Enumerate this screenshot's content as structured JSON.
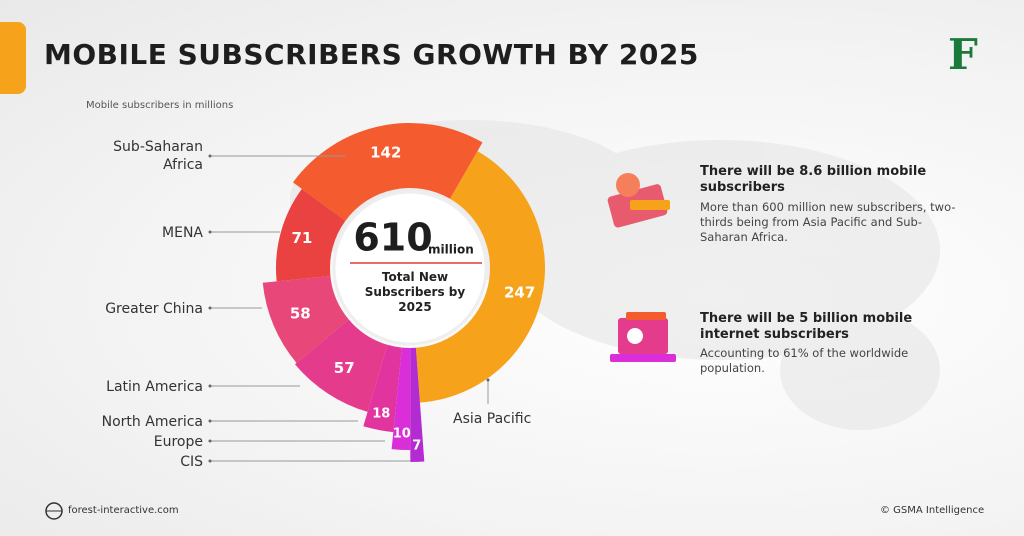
{
  "header": {
    "title": "MOBILE SUBSCRIBERS GROWTH BY 2025",
    "logo": "F"
  },
  "chart_data": {
    "type": "donut",
    "subtitle": "Mobile subscribers in millions",
    "categories": [
      "Asia Pacific",
      "CIS",
      "Europe",
      "North America",
      "Latin America",
      "Greater China",
      "MENA",
      "Sub-Saharan Africa"
    ],
    "values": [
      247,
      7,
      10,
      18,
      57,
      58,
      71,
      142
    ],
    "colors": [
      "#f7a21b",
      "#b42bd2",
      "#d92ed8",
      "#e2349f",
      "#e53b8c",
      "#e8477a",
      "#ea4141",
      "#f45b2e"
    ],
    "total": 610,
    "total_unit": "million",
    "center_label": "Total New Subscribers by 2025"
  },
  "facts": [
    {
      "title": "There will be 8.6 billion mobile subscribers",
      "text": "More than 600 million new subscribers, two-thirds being from Asia Pacific and Sub-Saharan Africa."
    },
    {
      "title": "There will be 5 billion mobile internet subscribers",
      "text": "Accounting to 61% of the worldwide population."
    }
  ],
  "footer": {
    "website": "forest-interactive.com",
    "source": "© GSMA Intelligence"
  }
}
